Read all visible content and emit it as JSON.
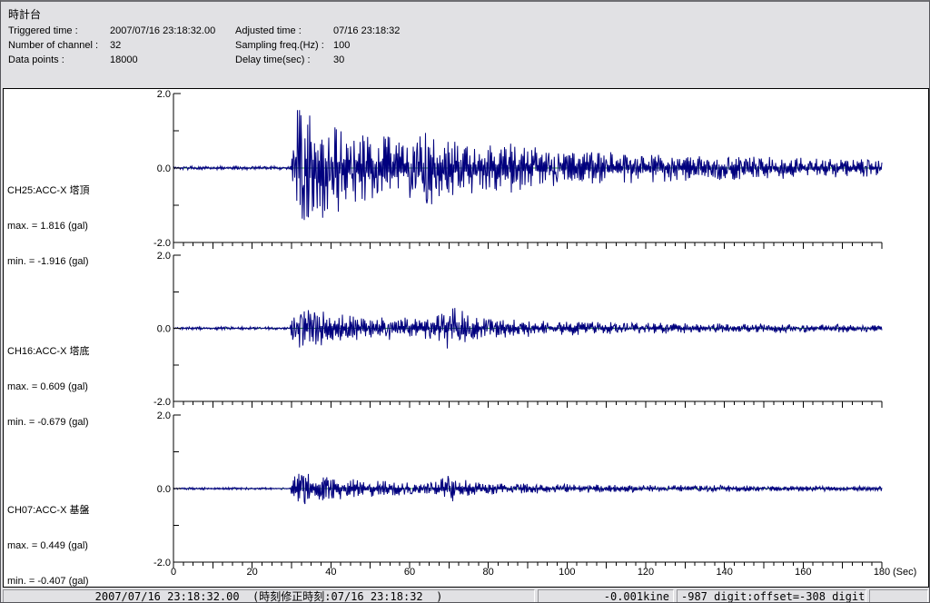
{
  "window": {
    "title": "時計台"
  },
  "header": {
    "title": "時計台",
    "left_fields": [
      {
        "label": "Triggered time :",
        "value": "2007/07/16 23:18:32.00"
      },
      {
        "label": "Number of channel :",
        "value": "32"
      },
      {
        "label": "Data points :",
        "value": "18000"
      }
    ],
    "right_fields": [
      {
        "label": "Adjusted time :",
        "value": "07/16 23:18:32"
      },
      {
        "label": "Sampling freq.(Hz) :",
        "value": "100"
      },
      {
        "label": "Delay time(sec) :",
        "value": "30"
      }
    ]
  },
  "channels": [
    {
      "title": "CH25:ACC-X 塔頂",
      "max": "max. = 1.816 (gal)",
      "min": "min. = -1.916 (gal)"
    },
    {
      "title": "CH16:ACC-X 塔底",
      "max": "max. = 0.609 (gal)",
      "min": "min. = -0.679 (gal)"
    },
    {
      "title": "CH07:ACC-X 基盤",
      "max": "max. = 0.449 (gal)",
      "min": "min. = -0.407 (gal)"
    }
  ],
  "chart_data": {
    "type": "line",
    "x_range": [
      0,
      180
    ],
    "x_tick_labels": [
      "0",
      "20",
      "40",
      "60",
      "80",
      "100",
      "120",
      "140",
      "160",
      "180"
    ],
    "x_major_step": 20,
    "x_minor_step": 2.5,
    "x_unit_label": "(Sec)",
    "y_range": [
      -2,
      2
    ],
    "y_tick_labels": {
      "top": "2.0",
      "mid": "0.0",
      "bottom": "-2.0"
    },
    "grid": false,
    "line_color": "#00007e",
    "baseline_color": "#2f9e2f",
    "series": [
      {
        "name": "CH25:ACC-X 塔頂",
        "unit": "gal",
        "max_gal": 1.816,
        "min_gal": -1.916,
        "seed": 101,
        "envelope": [
          [
            0,
            0.05
          ],
          [
            29.6,
            0.05
          ],
          [
            30,
            0.4
          ],
          [
            30.8,
            1.2
          ],
          [
            31.5,
            1.9
          ],
          [
            33,
            1.75
          ],
          [
            34.5,
            1.9
          ],
          [
            36,
            1.8
          ],
          [
            37.5,
            1.55
          ],
          [
            39,
            1.45
          ],
          [
            41,
            1.25
          ],
          [
            43,
            1.1
          ],
          [
            45,
            1.05
          ],
          [
            47,
            0.95
          ],
          [
            50,
            0.95
          ],
          [
            53,
            0.9
          ],
          [
            56,
            0.85
          ],
          [
            59,
            0.85
          ],
          [
            62,
            0.8
          ],
          [
            64,
            0.95
          ],
          [
            66,
            1.05
          ],
          [
            68,
            0.85
          ],
          [
            71,
            0.75
          ],
          [
            74,
            0.7
          ],
          [
            77,
            0.68
          ],
          [
            80,
            0.65
          ],
          [
            83,
            0.62
          ],
          [
            86,
            0.68
          ],
          [
            89,
            0.6
          ],
          [
            93,
            0.55
          ],
          [
            97,
            0.5
          ],
          [
            101,
            0.48
          ],
          [
            106,
            0.45
          ],
          [
            112,
            0.43
          ],
          [
            118,
            0.4
          ],
          [
            125,
            0.38
          ],
          [
            132,
            0.35
          ],
          [
            140,
            0.33
          ],
          [
            148,
            0.3
          ],
          [
            156,
            0.3
          ],
          [
            164,
            0.27
          ],
          [
            172,
            0.25
          ],
          [
            180,
            0.24
          ]
        ]
      },
      {
        "name": "CH16:ACC-X 塔底",
        "unit": "gal",
        "max_gal": 0.609,
        "min_gal": -0.679,
        "seed": 202,
        "envelope": [
          [
            0,
            0.04
          ],
          [
            29.6,
            0.04
          ],
          [
            30,
            0.25
          ],
          [
            31,
            0.55
          ],
          [
            32,
            0.62
          ],
          [
            33.5,
            0.55
          ],
          [
            35,
            0.48
          ],
          [
            37,
            0.52
          ],
          [
            39,
            0.45
          ],
          [
            41,
            0.4
          ],
          [
            44,
            0.38
          ],
          [
            47,
            0.33
          ],
          [
            50,
            0.3
          ],
          [
            53,
            0.34
          ],
          [
            56,
            0.3
          ],
          [
            59,
            0.32
          ],
          [
            62,
            0.28
          ],
          [
            65,
            0.3
          ],
          [
            67.5,
            0.38
          ],
          [
            69,
            0.58
          ],
          [
            70.5,
            0.52
          ],
          [
            72,
            0.6
          ],
          [
            73.5,
            0.48
          ],
          [
            75,
            0.36
          ],
          [
            77,
            0.3
          ],
          [
            80,
            0.28
          ],
          [
            84,
            0.26
          ],
          [
            88,
            0.24
          ],
          [
            93,
            0.22
          ],
          [
            98,
            0.2
          ],
          [
            104,
            0.19
          ],
          [
            110,
            0.17
          ],
          [
            118,
            0.16
          ],
          [
            126,
            0.15
          ],
          [
            134,
            0.14
          ],
          [
            142,
            0.13
          ],
          [
            152,
            0.13
          ],
          [
            162,
            0.12
          ],
          [
            172,
            0.11
          ],
          [
            180,
            0.11
          ]
        ]
      },
      {
        "name": "CH07:ACC-X 基盤",
        "unit": "gal",
        "max_gal": 0.449,
        "min_gal": -0.407,
        "seed": 303,
        "envelope": [
          [
            0,
            0.03
          ],
          [
            29.6,
            0.03
          ],
          [
            30,
            0.18
          ],
          [
            31,
            0.42
          ],
          [
            32,
            0.45
          ],
          [
            33.5,
            0.42
          ],
          [
            35,
            0.38
          ],
          [
            37,
            0.35
          ],
          [
            39,
            0.32
          ],
          [
            41,
            0.3
          ],
          [
            44,
            0.28
          ],
          [
            47,
            0.25
          ],
          [
            50,
            0.23
          ],
          [
            53,
            0.21
          ],
          [
            56,
            0.2
          ],
          [
            59,
            0.18
          ],
          [
            62,
            0.17
          ],
          [
            65,
            0.17
          ],
          [
            67.5,
            0.22
          ],
          [
            69,
            0.4
          ],
          [
            70.5,
            0.45
          ],
          [
            72,
            0.32
          ],
          [
            74,
            0.24
          ],
          [
            76,
            0.2
          ],
          [
            79,
            0.17
          ],
          [
            83,
            0.15
          ],
          [
            88,
            0.14
          ],
          [
            94,
            0.13
          ],
          [
            100,
            0.12
          ],
          [
            108,
            0.11
          ],
          [
            116,
            0.1
          ],
          [
            124,
            0.1
          ],
          [
            134,
            0.09
          ],
          [
            144,
            0.09
          ],
          [
            154,
            0.08
          ],
          [
            164,
            0.08
          ],
          [
            172,
            0.07
          ],
          [
            180,
            0.07
          ]
        ]
      }
    ]
  },
  "status_bar": {
    "timestamp": "2007/07/16 23:18:32.00  (時刻修正時刻:07/16 23:18:32  )",
    "kine_value": "-0.001kine",
    "digit_info": "-987 digit:offset=-308 digit"
  }
}
